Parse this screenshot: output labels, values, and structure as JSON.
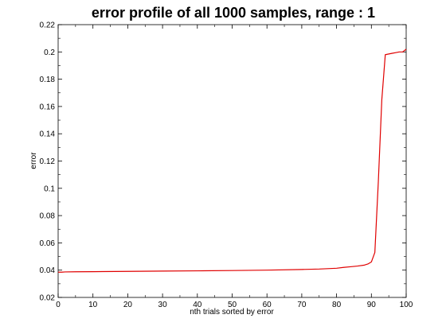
{
  "chart_data": {
    "type": "line",
    "title": "error profile of all 1000 samples, range : 1",
    "xlabel": "nth trials sorted by error",
    "ylabel": "error",
    "xlim": [
      0,
      100
    ],
    "ylim": [
      0.02,
      0.22
    ],
    "xticks": [
      "0",
      "10",
      "20",
      "30",
      "40",
      "50",
      "60",
      "70",
      "80",
      "90",
      "100"
    ],
    "yticks": [
      "0.02",
      "0.04",
      "0.06",
      "0.08",
      "0.1",
      "0.12",
      "0.14",
      "0.16",
      "0.18",
      "0.2",
      "0.22"
    ],
    "grid": false,
    "series": [
      {
        "color": "#e00000",
        "x": [
          0,
          1,
          2,
          5,
          10,
          20,
          30,
          40,
          50,
          60,
          70,
          75,
          80,
          82,
          84,
          86,
          88,
          89,
          90,
          91,
          92,
          93,
          94,
          95,
          96,
          97,
          98,
          99,
          100
        ],
        "y": [
          0.0385,
          0.0385,
          0.0387,
          0.0388,
          0.0389,
          0.0391,
          0.0393,
          0.0395,
          0.0397,
          0.04,
          0.0405,
          0.0408,
          0.0414,
          0.042,
          0.0425,
          0.043,
          0.0437,
          0.0445,
          0.046,
          0.053,
          0.105,
          0.165,
          0.198,
          0.1985,
          0.199,
          0.1995,
          0.2,
          0.2,
          0.202
        ]
      }
    ]
  }
}
